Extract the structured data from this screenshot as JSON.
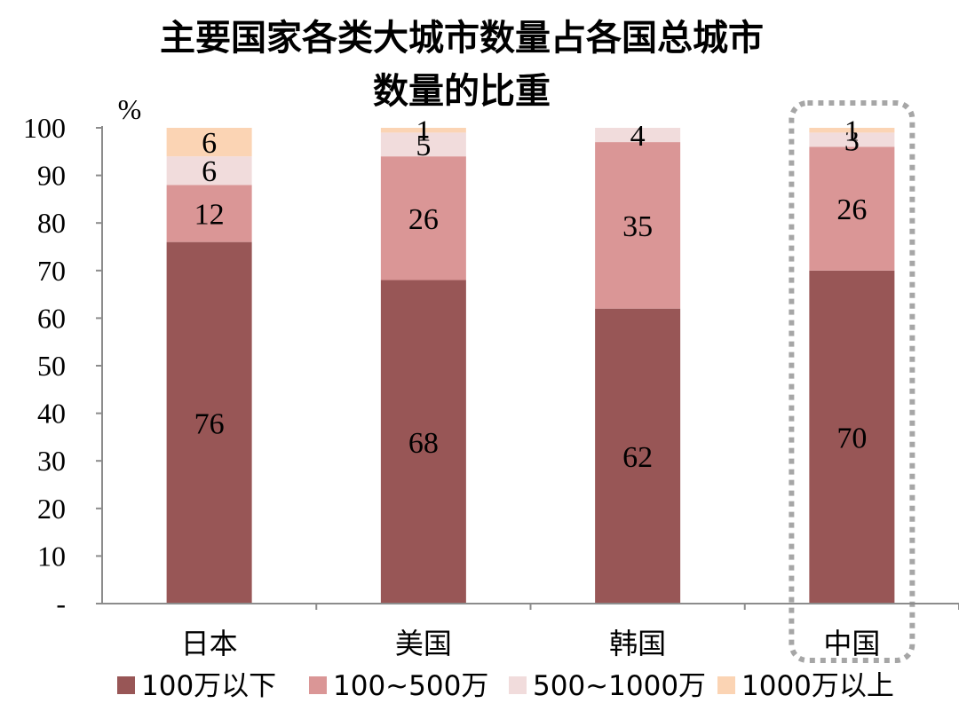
{
  "chart_data": {
    "type": "bar",
    "stacked": true,
    "title": "主要国家各类大城市数量占各国总城市数量的比重",
    "title_lines": [
      "主要国家各类大城市数量占各国总城市",
      "数量的比重"
    ],
    "ylabel": "%",
    "ylim": [
      0,
      100
    ],
    "yticks": [
      "-",
      "10",
      "20",
      "30",
      "40",
      "50",
      "60",
      "70",
      "80",
      "90",
      "100"
    ],
    "categories": [
      "日本",
      "美国",
      "韩国",
      "中国"
    ],
    "series": [
      {
        "name": "100万以下",
        "color": "#985656",
        "values": [
          76,
          68,
          62,
          70
        ]
      },
      {
        "name": "100~500万",
        "color": "#da9696",
        "values": [
          12,
          26,
          35,
          26
        ]
      },
      {
        "name": "500~1000万",
        "color": "#f1dcdc",
        "values": [
          6,
          5,
          4,
          3
        ]
      },
      {
        "name": "1000万以上",
        "color": "#fbd4b4",
        "values": [
          6,
          1,
          0,
          1
        ]
      }
    ],
    "highlight_category": "中国",
    "highlight_style": "dotted-box",
    "legend_position": "bottom",
    "grid": false
  }
}
